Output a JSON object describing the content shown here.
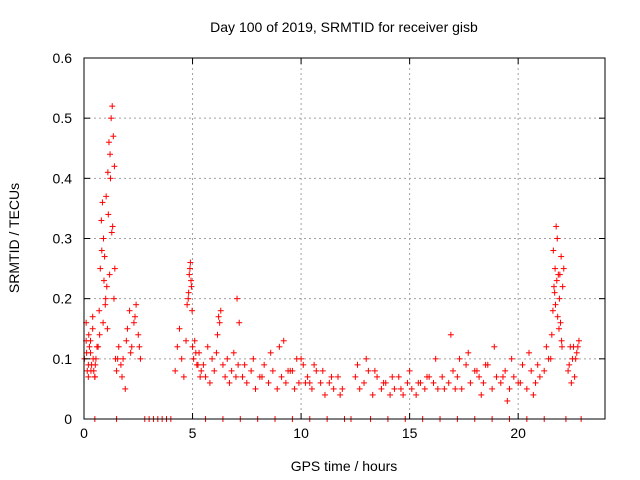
{
  "chart_data": {
    "type": "scatter",
    "title": "Day 100 of 2019, SRMTID for receiver gisb",
    "xlabel": "GPS time / hours",
    "ylabel": "SRMTID / TECUs",
    "xlim": [
      0,
      24
    ],
    "ylim": [
      0,
      0.6
    ],
    "xticks": [
      0,
      5,
      10,
      15,
      20
    ],
    "xtick_labels": [
      "0",
      "5",
      "10",
      "15",
      "20"
    ],
    "yticks": [
      0,
      0.1,
      0.2,
      0.3,
      0.4,
      0.5,
      0.6
    ],
    "ytick_labels": [
      "0",
      "0.1",
      "0.2",
      "0.3",
      "0.4",
      "0.5",
      "0.6"
    ],
    "grid": true,
    "marker": "+",
    "series": [
      {
        "name": "SRMTID",
        "color": "#ff0000",
        "x": [
          0.02,
          0.1,
          0.15,
          0.2,
          0.25,
          0.3,
          0.35,
          0.4,
          0.45,
          0.5,
          0.55,
          0.6,
          0.1,
          0.2,
          0.3,
          0.4,
          0.5,
          0.12,
          0.22,
          0.32,
          0.42,
          0.52,
          0.65,
          0.7,
          0.75,
          0.8,
          0.85,
          0.9,
          0.95,
          1.0,
          1.05,
          1.1,
          1.15,
          1.2,
          1.25,
          1.3,
          1.35,
          1.4,
          0.72,
          0.82,
          0.92,
          1.02,
          1.12,
          1.22,
          1.32,
          1.42,
          0.88,
          0.98,
          1.08,
          1.18,
          1.28,
          1.38,
          1.45,
          1.5,
          1.6,
          1.7,
          1.8,
          1.9,
          2.0,
          2.1,
          2.2,
          2.3,
          2.4,
          2.5,
          2.6,
          1.55,
          1.75,
          1.95,
          2.15,
          2.35,
          2.55,
          4.2,
          4.3,
          4.4,
          4.5,
          4.6,
          4.7,
          4.8,
          4.85,
          4.9,
          4.95,
          5.0,
          5.05,
          5.1,
          5.2,
          5.3,
          5.4,
          4.75,
          4.82,
          4.88,
          4.93,
          4.98,
          5.15,
          5.25,
          5.35,
          5.5,
          5.6,
          5.7,
          5.8,
          5.9,
          6.0,
          6.1,
          6.2,
          6.3,
          6.4,
          6.5,
          6.6,
          6.7,
          6.8,
          6.9,
          7.0,
          7.1,
          6.15,
          6.25,
          7.05,
          7.15,
          7.3,
          7.5,
          7.7,
          7.9,
          8.1,
          8.3,
          8.5,
          8.7,
          8.9,
          9.1,
          9.3,
          9.5,
          9.7,
          9.9,
          10.1,
          10.3,
          10.5,
          10.7,
          10.9,
          11.1,
          11.3,
          11.5,
          11.7,
          11.9,
          7.4,
          7.8,
          8.2,
          8.6,
          9.0,
          9.4,
          9.8,
          10.2,
          10.6,
          11.0,
          11.4,
          11.8,
          9.2,
          9.6,
          10.0,
          10.4,
          12.5,
          12.7,
          12.9,
          13.1,
          13.3,
          13.5,
          13.7,
          13.9,
          14.1,
          14.3,
          14.5,
          14.7,
          14.9,
          15.1,
          15.3,
          15.5,
          15.7,
          15.9,
          16.1,
          16.3,
          16.5,
          12.6,
          13.0,
          13.4,
          13.8,
          14.2,
          14.6,
          15.0,
          15.4,
          15.8,
          16.2,
          16.6,
          16.8,
          17.0,
          17.2,
          17.4,
          17.6,
          17.8,
          18.0,
          18.2,
          18.4,
          18.6,
          18.8,
          19.0,
          19.2,
          19.4,
          19.6,
          19.8,
          20.0,
          20.2,
          20.4,
          20.6,
          20.8,
          21.0,
          21.2,
          21.4,
          16.9,
          17.3,
          17.7,
          18.1,
          18.5,
          18.9,
          19.3,
          19.7,
          20.1,
          20.5,
          20.9,
          21.3,
          17.1,
          18.3,
          19.5,
          20.7,
          21.5,
          21.55,
          21.6,
          21.65,
          21.7,
          21.75,
          21.8,
          21.85,
          21.9,
          21.95,
          22.0,
          22.05,
          22.1,
          21.62,
          21.68,
          21.72,
          21.78,
          21.82,
          21.88,
          21.92,
          21.98,
          22.02,
          22.3,
          22.4,
          22.5,
          22.6,
          22.7,
          22.8,
          22.35,
          22.45,
          22.55,
          22.65,
          22.75,
          0.5,
          1.5,
          2.8,
          3.0,
          3.2,
          3.4,
          3.6,
          3.8,
          4.0,
          5.6,
          6.4,
          7.2,
          8.0,
          8.8,
          9.6,
          10.4,
          11.2,
          12.0,
          12.3,
          13.2,
          14.0,
          14.8,
          15.6,
          16.4,
          17.2,
          18.0,
          18.8,
          19.6,
          20.4,
          21.2,
          22.2,
          22.9
        ],
        "y": [
          0.1,
          0.13,
          0.08,
          0.07,
          0.12,
          0.11,
          0.09,
          0.15,
          0.08,
          0.07,
          0.1,
          0.12,
          0.16,
          0.09,
          0.13,
          0.17,
          0.07,
          0.11,
          0.14,
          0.08,
          0.1,
          0.09,
          0.12,
          0.18,
          0.25,
          0.33,
          0.36,
          0.3,
          0.27,
          0.2,
          0.22,
          0.41,
          0.46,
          0.44,
          0.5,
          0.52,
          0.47,
          0.42,
          0.14,
          0.28,
          0.23,
          0.37,
          0.34,
          0.4,
          0.32,
          0.25,
          0.16,
          0.19,
          0.15,
          0.24,
          0.31,
          0.2,
          0.1,
          0.08,
          0.12,
          0.09,
          0.1,
          0.05,
          0.15,
          0.18,
          0.12,
          0.16,
          0.19,
          0.14,
          0.1,
          0.1,
          0.07,
          0.13,
          0.11,
          0.17,
          0.12,
          0.08,
          0.12,
          0.15,
          0.1,
          0.07,
          0.13,
          0.2,
          0.24,
          0.26,
          0.22,
          0.12,
          0.1,
          0.13,
          0.09,
          0.11,
          0.08,
          0.19,
          0.21,
          0.25,
          0.23,
          0.18,
          0.11,
          0.09,
          0.07,
          0.09,
          0.07,
          0.12,
          0.06,
          0.1,
          0.08,
          0.11,
          0.17,
          0.18,
          0.09,
          0.07,
          0.1,
          0.06,
          0.08,
          0.11,
          0.07,
          0.09,
          0.14,
          0.16,
          0.2,
          0.16,
          0.07,
          0.06,
          0.08,
          0.05,
          0.07,
          0.09,
          0.06,
          0.08,
          0.05,
          0.07,
          0.06,
          0.08,
          0.05,
          0.06,
          0.09,
          0.07,
          0.05,
          0.08,
          0.06,
          0.04,
          0.06,
          0.05,
          0.07,
          0.05,
          0.09,
          0.1,
          0.07,
          0.11,
          0.12,
          0.08,
          0.1,
          0.06,
          0.09,
          0.08,
          0.07,
          0.04,
          0.13,
          0.08,
          0.1,
          0.06,
          0.07,
          0.05,
          0.06,
          0.08,
          0.04,
          0.07,
          0.05,
          0.06,
          0.04,
          0.05,
          0.07,
          0.04,
          0.06,
          0.05,
          0.04,
          0.06,
          0.05,
          0.07,
          0.06,
          0.05,
          0.07,
          0.09,
          0.1,
          0.08,
          0.06,
          0.07,
          0.05,
          0.08,
          0.06,
          0.07,
          0.1,
          0.05,
          0.06,
          0.08,
          0.07,
          0.05,
          0.09,
          0.06,
          0.08,
          0.07,
          0.06,
          0.09,
          0.05,
          0.07,
          0.06,
          0.08,
          0.05,
          0.07,
          0.06,
          0.09,
          0.05,
          0.08,
          0.06,
          0.07,
          0.08,
          0.1,
          0.14,
          0.1,
          0.11,
          0.08,
          0.09,
          0.12,
          0.07,
          0.1,
          0.06,
          0.11,
          0.09,
          0.12,
          0.05,
          0.04,
          0.03,
          0.04,
          0.1,
          0.14,
          0.18,
          0.22,
          0.25,
          0.32,
          0.3,
          0.24,
          0.2,
          0.16,
          0.13,
          0.22,
          0.25,
          0.28,
          0.21,
          0.19,
          0.23,
          0.17,
          0.15,
          0.24,
          0.27,
          0.12,
          0.08,
          0.12,
          0.1,
          0.07,
          0.11,
          0.13,
          0.09,
          0.06,
          0.12,
          0.1,
          0.12,
          0,
          0,
          0,
          0,
          0,
          0,
          0,
          0,
          0,
          0,
          0,
          0,
          0,
          0,
          0,
          0,
          0,
          0,
          0,
          0,
          0,
          0,
          0,
          0,
          0,
          0,
          0,
          0,
          0,
          0,
          0,
          0
        ]
      }
    ]
  }
}
